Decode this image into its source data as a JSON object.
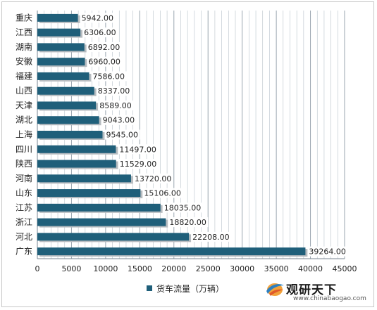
{
  "chart_data": {
    "type": "bar",
    "orientation": "horizontal",
    "categories": [
      "重庆",
      "江西",
      "湖南",
      "安徽",
      "福建",
      "山西",
      "天津",
      "湖北",
      "上海",
      "四川",
      "陕西",
      "河南",
      "山东",
      "江苏",
      "浙江",
      "河北",
      "广东"
    ],
    "values": [
      5942,
      6306,
      6892,
      6960,
      7586,
      8337,
      8589,
      9043,
      9545,
      11497,
      11529,
      13720,
      15106,
      18035,
      18820,
      22208,
      39264
    ],
    "value_labels": [
      "5942.00",
      "6306.00",
      "6892.00",
      "6960.00",
      "7586.00",
      "8337.00",
      "8589.00",
      "9043.00",
      "9545.00",
      "11497.00",
      "11529.00",
      "13720.00",
      "15106.00",
      "18035.00",
      "18820.00",
      "22208.00",
      "39264.00"
    ],
    "xlim": [
      0,
      45000
    ],
    "ticks": [
      0,
      5000,
      10000,
      15000,
      20000,
      25000,
      30000,
      35000,
      40000,
      45000
    ],
    "series_name": "货车流量（万辆）",
    "legend_position": "bottom",
    "grid": true,
    "bar_color": "#1f5f7a",
    "grid_color": "#9aa8b4"
  },
  "brand": {
    "name": "观研天下",
    "url": "www.chinabaogao.com",
    "logo_icon": "globe-swoosh-icon"
  }
}
